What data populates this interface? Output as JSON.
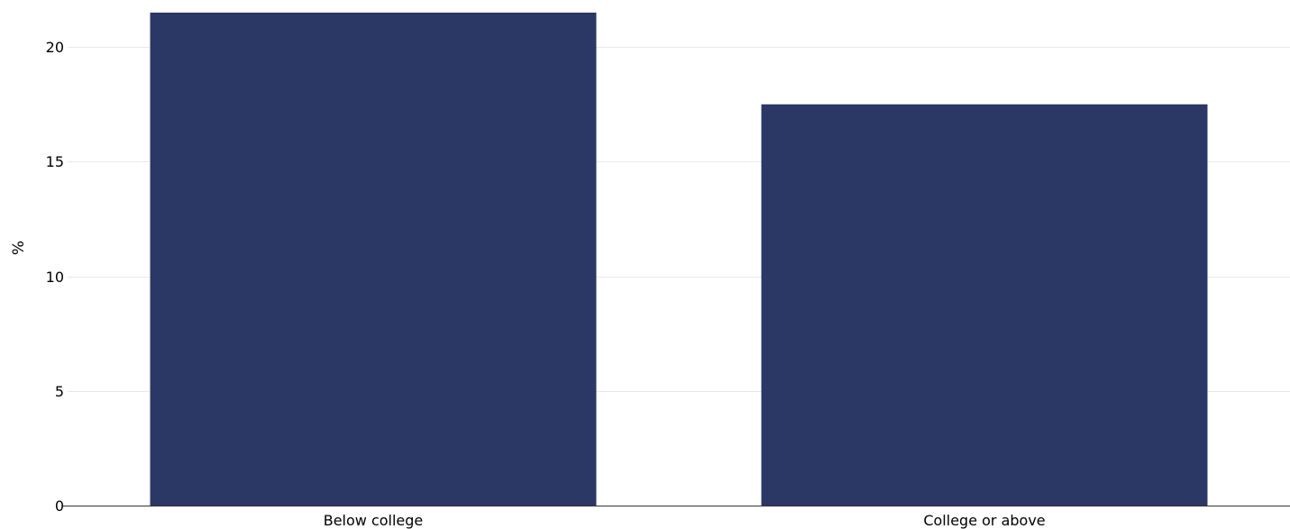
{
  "chart_data": {
    "type": "bar",
    "categories": [
      "Below college",
      "College or above"
    ],
    "values": [
      21.5,
      17.5
    ],
    "title": "",
    "xlabel": "",
    "ylabel": "%",
    "ylim": [
      0,
      21.5
    ],
    "yticks": [
      0,
      5,
      10,
      15,
      20
    ],
    "grid": true,
    "legend": "none",
    "bar_color": "#2b3764",
    "grid_color": "#e8e8e8"
  }
}
